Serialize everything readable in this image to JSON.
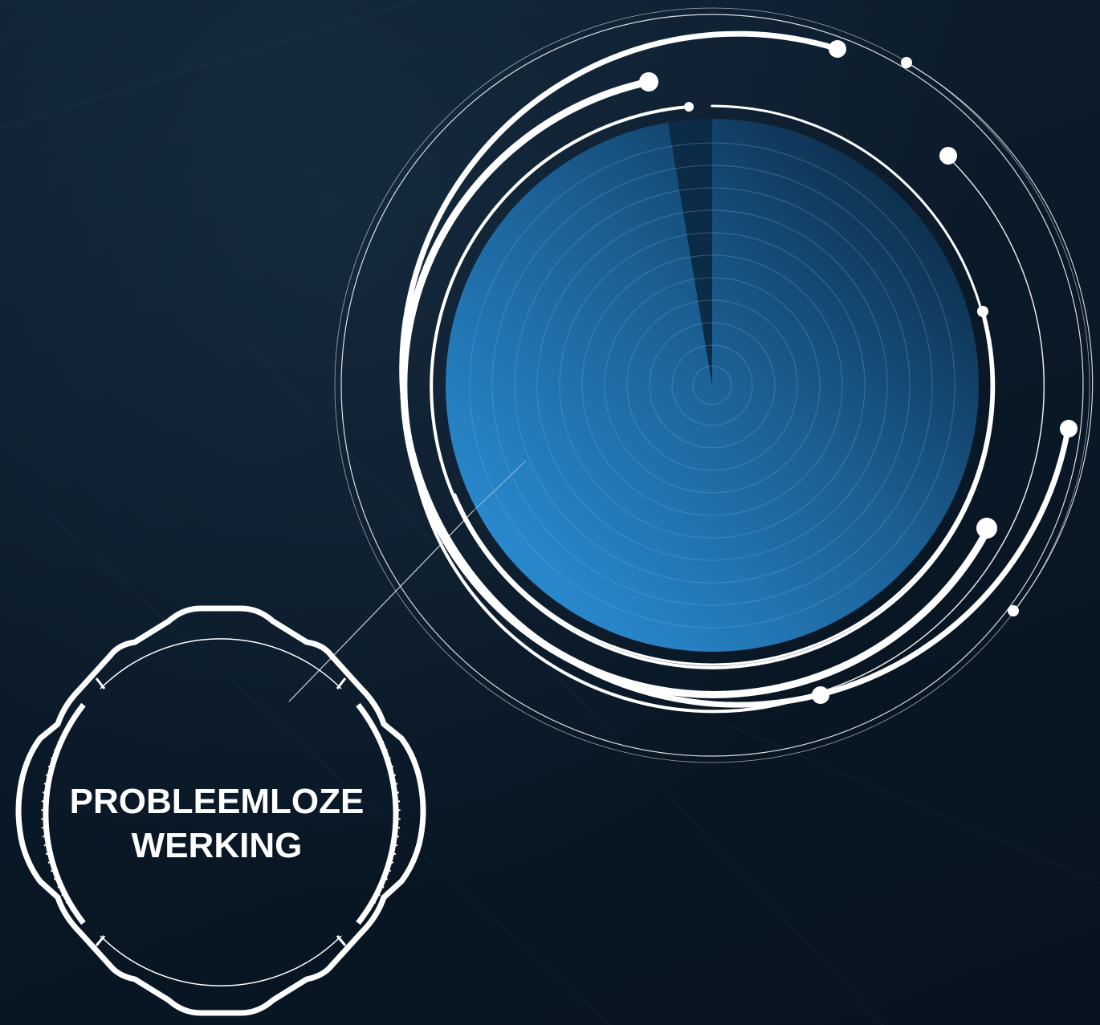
{
  "badge": {
    "line1": "PROBLEEMLOZE",
    "line2": "WERKING"
  },
  "colors": {
    "background": "#0b1a29",
    "radar_light": "#2a88cc",
    "radar_dark": "#0c2b46",
    "ring": "#ffffff"
  },
  "icons": {
    "radar": "radar-icon",
    "badge_frame": "gear-frame-icon"
  }
}
